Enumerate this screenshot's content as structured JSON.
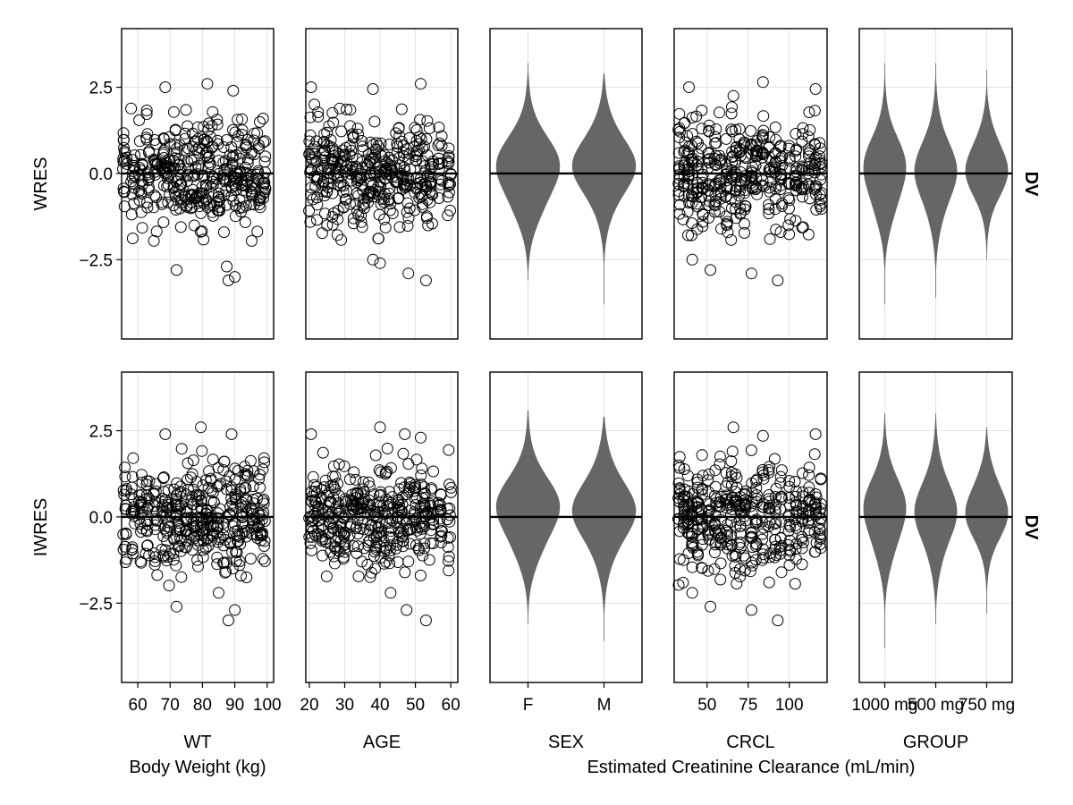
{
  "chart_data": {
    "type": "scatter",
    "grid": true,
    "colors": {
      "points": "#000000",
      "violin": "#666666",
      "grid": "#e2e2e2",
      "reference_line": "#000000"
    },
    "reference_line_y": 0,
    "row_facet_label": "DV",
    "ylim": [
      -4.8,
      4.2
    ],
    "yticks": [
      -2.5,
      0.0,
      2.5
    ],
    "ytick_labels": [
      "−2.5",
      "0.0",
      "2.5"
    ],
    "rows": [
      {
        "id": "wres",
        "ylabel": "WRES"
      },
      {
        "id": "iwres",
        "ylabel": "IWRES"
      }
    ],
    "panels": [
      {
        "id": "wt",
        "type": "scatter",
        "xlabel": "WT",
        "xlim": [
          55,
          102
        ],
        "xticks": [
          60,
          70,
          80,
          90,
          100
        ],
        "x_groups": [
          56,
          58.5,
          61,
          63,
          65.5,
          68,
          69.5,
          71.5,
          73,
          75,
          77,
          78.5,
          80,
          81.5,
          83,
          85,
          87,
          89,
          90.5,
          92,
          93.5,
          95.5,
          97.5,
          99
        ],
        "n_points": 400,
        "sd": 1.0,
        "wres_extremes": [
          [
            68.5,
            2.5
          ],
          [
            81.5,
            2.6
          ],
          [
            89.5,
            2.4
          ],
          [
            72,
            -2.8
          ],
          [
            88,
            -3.1
          ],
          [
            90,
            -3.0
          ],
          [
            87.5,
            -2.7
          ]
        ],
        "iwres_extremes": [
          [
            68.5,
            2.4
          ],
          [
            79.5,
            2.6
          ],
          [
            89,
            2.4
          ],
          [
            72,
            -2.6
          ],
          [
            88,
            -3.0
          ],
          [
            90,
            -2.7
          ],
          [
            85,
            -2.2
          ]
        ]
      },
      {
        "id": "age",
        "type": "scatter",
        "xlabel": "AGE",
        "xlim": [
          19,
          62
        ],
        "xticks": [
          20,
          30,
          40,
          50,
          60
        ],
        "x_groups": [
          20.5,
          22,
          24,
          25.5,
          27,
          28.5,
          30,
          32,
          33.5,
          35,
          37,
          38.5,
          40,
          41.5,
          43,
          45,
          46.5,
          48,
          50,
          51.5,
          53,
          54.5,
          57,
          59.5
        ],
        "n_points": 400,
        "sd": 1.0,
        "wres_extremes": [
          [
            20.5,
            2.5
          ],
          [
            38,
            2.45
          ],
          [
            51.5,
            2.6
          ],
          [
            40,
            -2.6
          ],
          [
            48,
            -2.9
          ],
          [
            53,
            -3.1
          ],
          [
            38,
            -2.5
          ]
        ],
        "iwres_extremes": [
          [
            20.5,
            2.4
          ],
          [
            40,
            2.6
          ],
          [
            47,
            2.4
          ],
          [
            51.5,
            2.3
          ],
          [
            47.5,
            -2.7
          ],
          [
            53,
            -3.0
          ],
          [
            43,
            -2.2
          ]
        ]
      },
      {
        "id": "sex",
        "type": "violin",
        "xlabel": "SEX",
        "categories": [
          "F",
          "M"
        ],
        "violins": {
          "wres": [
            {
              "mu": 0.05,
              "sd": 1.0,
              "min": -3.1,
              "max": 3.2
            },
            {
              "mu": 0.2,
              "sd": 0.95,
              "min": -3.8,
              "max": 2.9
            }
          ],
          "iwres": [
            {
              "mu": 0.15,
              "sd": 1.0,
              "min": -3.1,
              "max": 3.1
            },
            {
              "mu": 0.15,
              "sd": 1.0,
              "min": -3.6,
              "max": 2.9
            }
          ]
        }
      },
      {
        "id": "crcl",
        "type": "scatter",
        "xlabel": "CRCL",
        "xlim": [
          30,
          123
        ],
        "xticks": [
          50,
          75,
          100
        ],
        "x_groups": [
          33,
          36,
          38.5,
          41,
          44,
          47,
          51,
          55,
          58,
          62,
          65,
          67.5,
          70,
          73,
          77,
          80,
          84,
          88,
          91.5,
          95,
          100,
          104,
          108,
          112,
          116,
          119
        ],
        "n_points": 400,
        "sd": 1.0,
        "wres_extremes": [
          [
            39,
            2.5
          ],
          [
            66,
            2.25
          ],
          [
            84,
            2.65
          ],
          [
            116,
            2.45
          ],
          [
            52,
            -2.8
          ],
          [
            93,
            -3.1
          ],
          [
            77,
            -2.9
          ],
          [
            41,
            -2.5
          ]
        ],
        "iwres_extremes": [
          [
            66,
            2.6
          ],
          [
            84,
            2.35
          ],
          [
            116,
            2.4
          ],
          [
            52,
            -2.6
          ],
          [
            93,
            -3.0
          ],
          [
            77,
            -2.7
          ],
          [
            41,
            -2.2
          ]
        ]
      },
      {
        "id": "group",
        "type": "violin",
        "xlabel": "GROUP",
        "categories": [
          "1000 mg",
          "500 mg",
          "750 mg"
        ],
        "violins": {
          "wres": [
            {
              "mu": 0.0,
              "sd": 1.0,
              "min": -3.8,
              "max": 3.2
            },
            {
              "mu": 0.0,
              "sd": 1.0,
              "min": -3.6,
              "max": 3.2
            },
            {
              "mu": 0.15,
              "sd": 0.85,
              "min": -2.5,
              "max": 3.0
            }
          ],
          "iwres": [
            {
              "mu": 0.1,
              "sd": 1.0,
              "min": -3.8,
              "max": 3.0
            },
            {
              "mu": 0.1,
              "sd": 1.0,
              "min": -3.1,
              "max": 3.0
            },
            {
              "mu": 0.2,
              "sd": 0.85,
              "min": -2.8,
              "max": 2.6
            }
          ]
        }
      }
    ],
    "column_group_labels": [
      {
        "text": "Body Weight (kg)",
        "columns": [
          "wt"
        ]
      },
      {
        "text": "Estimated Creatinine Clearance (mL/min)",
        "columns": [
          "sex",
          "crcl",
          "group"
        ]
      }
    ]
  }
}
